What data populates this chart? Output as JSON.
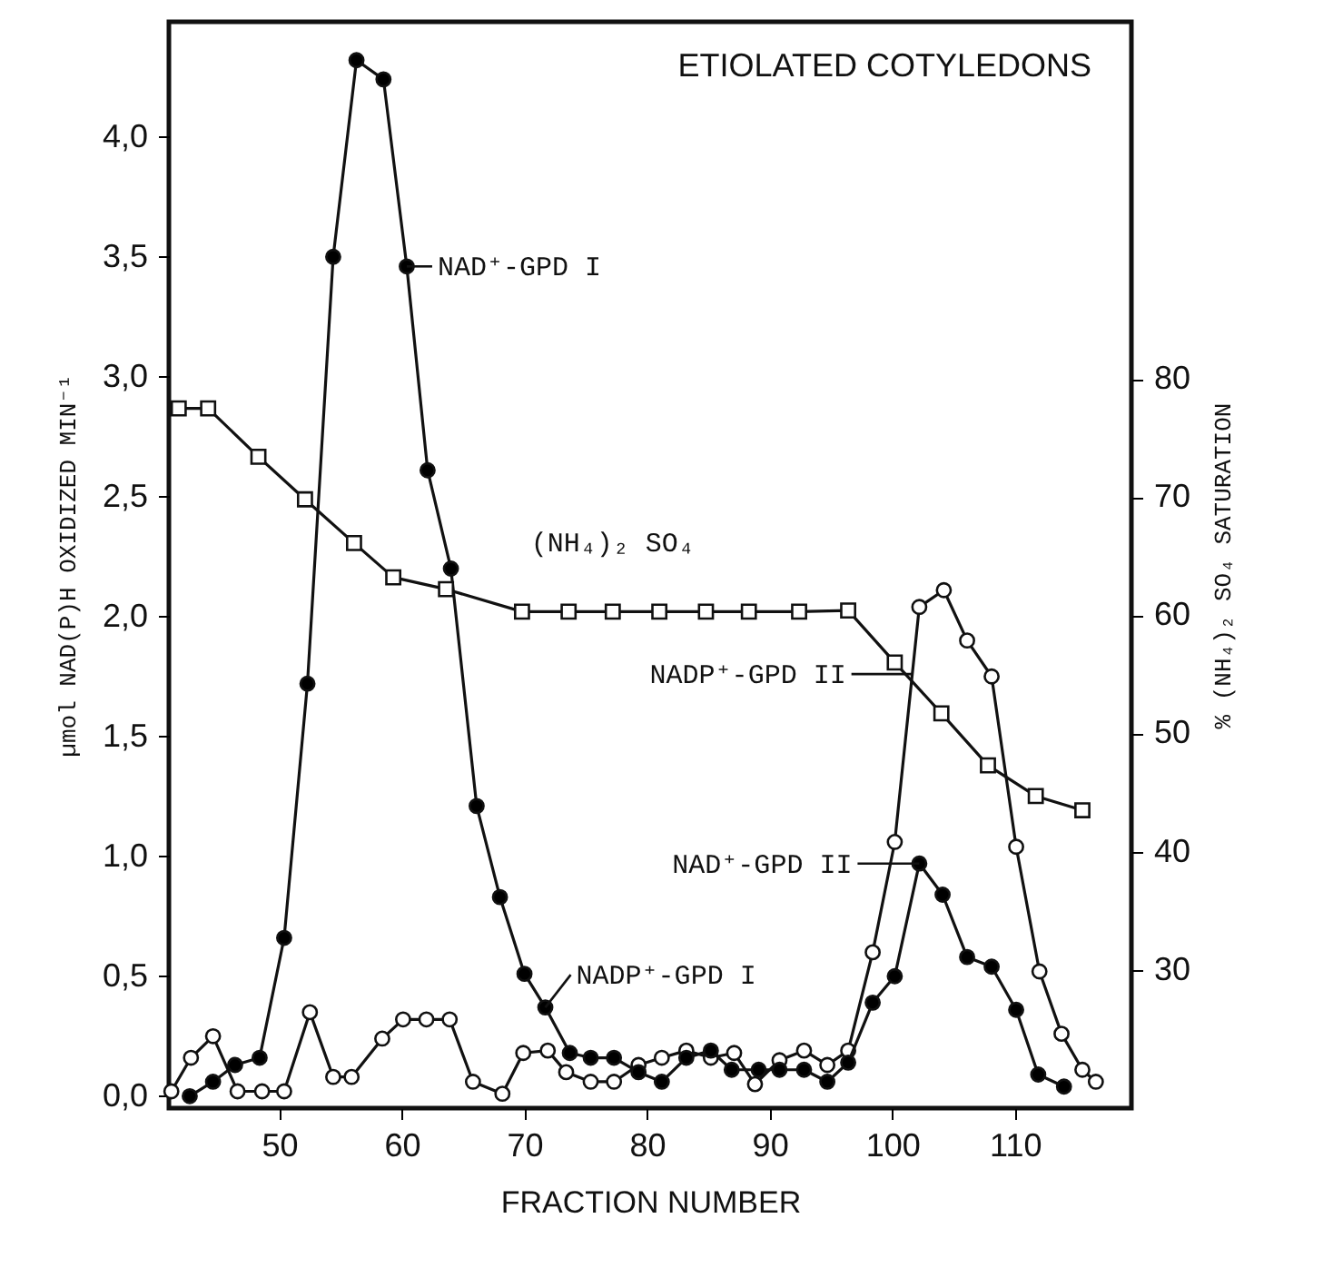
{
  "chart_data": {
    "type": "line",
    "title": "ETIOLATED COTYLEDONS",
    "xlabel": "FRACTION NUMBER",
    "ylabel": "µmol NAD(P)H OXIDIZED MIN⁻¹",
    "y2label": "% (NH₄)₂ SO₄ SATURATION",
    "xlim": [
      41,
      119.5
    ],
    "xticks": [
      50,
      60,
      70,
      80,
      90,
      100,
      110
    ],
    "ylim": [
      -0.05,
      4.48
    ],
    "yticks": [
      {
        "value": 0,
        "label": "0,0"
      },
      {
        "value": 0.5,
        "label": "0,5"
      },
      {
        "value": 1,
        "label": "1,0"
      },
      {
        "value": 1.5,
        "label": "1,5"
      },
      {
        "value": 2,
        "label": "2,0"
      },
      {
        "value": 2.5,
        "label": "2,5"
      },
      {
        "value": 3,
        "label": "3,0"
      },
      {
        "value": 3.5,
        "label": "3,5"
      },
      {
        "value": 4,
        "label": "4,0"
      }
    ],
    "y2lim": [
      18.3,
      110.2
    ],
    "y2ticks": [
      30,
      40,
      50,
      60,
      70,
      80
    ],
    "grid": false,
    "line_style": "solid",
    "series": [
      {
        "color": "#000000",
        "marker": "circle",
        "x": [
          42.7,
          44.6,
          46.4,
          48.4,
          50.4,
          52.3,
          54.4,
          56.3,
          58.5,
          60.4,
          62.1,
          64.0,
          66.1,
          68.0,
          70.0,
          71.7,
          73.7,
          75.4,
          77.3,
          79.3,
          81.2,
          83.2,
          85.2,
          86.9,
          89.1,
          90.8,
          92.8,
          94.7,
          96.4,
          98.4,
          100.2,
          102.2,
          104.1,
          106.1,
          108.1,
          110.1,
          111.9,
          114.0
        ],
        "values": [
          0,
          0.06,
          0.13,
          0.16,
          0.66,
          1.72,
          3.5,
          4.32,
          4.24,
          3.46,
          2.61,
          2.2,
          1.21,
          0.83,
          0.51,
          0.37,
          0.18,
          0.16,
          0.16,
          0.1,
          0.06,
          0.16,
          0.19,
          0.11,
          0.11,
          0.11,
          0.11,
          0.06,
          0.14,
          0.39,
          0.5,
          0.97,
          0.84,
          0.58,
          0.54,
          0.36,
          0.09,
          0.04
        ]
      },
      {
        "color": "#ffffff",
        "marker": "circle",
        "x": [
          41.2,
          42.8,
          44.6,
          46.6,
          48.6,
          50.4,
          52.5,
          54.4,
          55.9,
          58.4,
          60.1,
          62.0,
          63.9,
          65.8,
          68.2,
          69.9,
          71.9,
          73.4,
          75.4,
          77.3,
          79.3,
          81.2,
          83.2,
          85.2,
          87.1,
          88.8,
          90.8,
          92.8,
          94.7,
          96.4,
          98.4,
          100.2,
          102.2,
          104.2,
          106.1,
          108.1,
          110.1,
          112.0,
          113.8,
          115.5,
          116.6
        ],
        "values": [
          0.02,
          0.16,
          0.25,
          0.02,
          0.02,
          0.02,
          0.35,
          0.08,
          0.08,
          0.24,
          0.32,
          0.32,
          0.32,
          0.06,
          0.01,
          0.18,
          0.19,
          0.1,
          0.06,
          0.06,
          0.13,
          0.16,
          0.19,
          0.16,
          0.18,
          0.05,
          0.15,
          0.19,
          0.13,
          0.19,
          0.6,
          1.06,
          2.04,
          2.11,
          1.9,
          1.75,
          1.04,
          0.52,
          0.26,
          0.11,
          0.06
        ]
      },
      {
        "name": "(NH₄)₂ SO₄",
        "color": "#ffffff",
        "marker": "square",
        "axis": "y2",
        "x": [
          41.8,
          44.2,
          48.3,
          52.1,
          56.1,
          59.3,
          63.6,
          69.8,
          73.6,
          77.2,
          81.0,
          84.8,
          88.3,
          92.4,
          96.4,
          100.2,
          104.0,
          107.8,
          111.7,
          115.5
        ],
        "values": [
          77.5,
          77.5,
          73.4,
          69.8,
          66.1,
          63.2,
          62.2,
          60.3,
          60.3,
          60.3,
          60.3,
          60.3,
          60.3,
          60.3,
          60.4,
          56,
          51.7,
          47.3,
          44.7,
          43.5
        ]
      }
    ],
    "annotations": [
      {
        "text": "NAD⁺-GPD I",
        "x": 60.4,
        "y": 3.46
      },
      {
        "text": "NADP⁺-GPD I",
        "x": 71.7,
        "y": 0.37
      },
      {
        "text": "NADP⁺-GPD II",
        "x": 101.7,
        "y": 1.76
      },
      {
        "text": "NAD⁺-GPD II",
        "x": 102.2,
        "y": 0.97
      }
    ]
  }
}
